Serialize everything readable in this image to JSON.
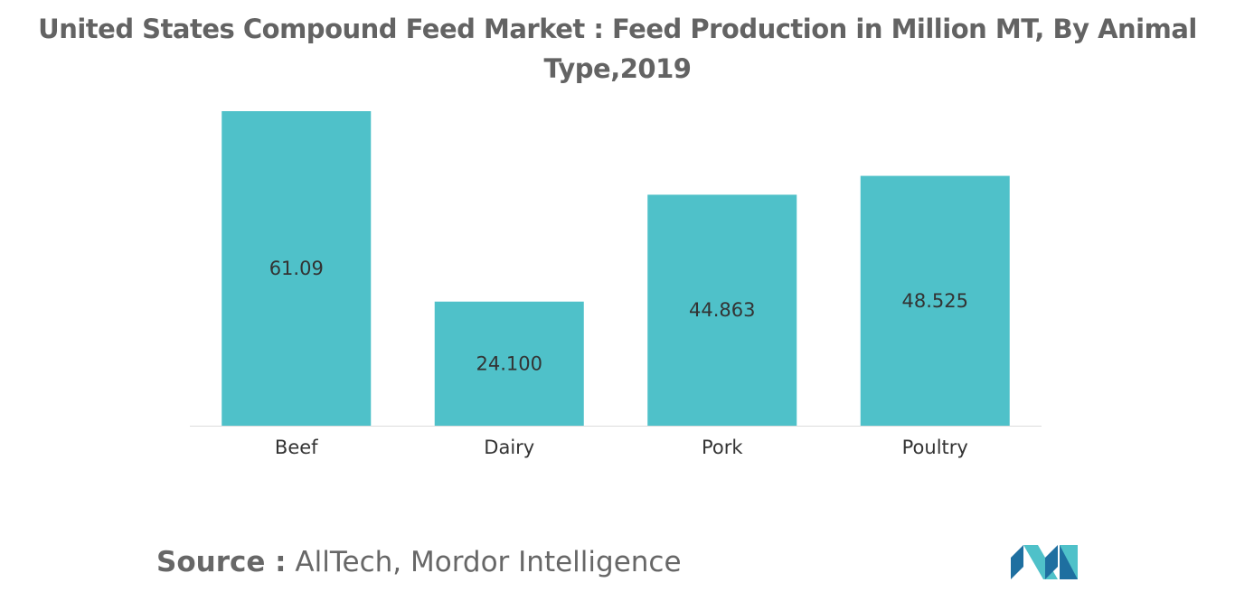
{
  "chart_data": {
    "type": "bar",
    "title": "United States Compound Feed Market : Feed Production in Million MT, By Animal Type,2019",
    "categories": [
      "Beef",
      "Dairy",
      "Pork",
      "Poultry"
    ],
    "values": [
      61.09,
      24.1,
      44.863,
      48.525
    ],
    "value_labels": [
      "61.09",
      "24.100",
      "44.863",
      "48.525"
    ],
    "xlabel": "",
    "ylabel": "",
    "ylim": [
      0,
      61.09
    ],
    "grid": false,
    "legend": "none"
  },
  "colors": {
    "bar": "#4fc1c9",
    "title_text": "#636363",
    "label_text": "#333333",
    "axis": "#dddddd",
    "logo_dark": "#1e6fa0",
    "logo_light": "#4fc1c9"
  },
  "source": {
    "label": "Source :",
    "text": " AllTech, Mordor Intelligence"
  },
  "logo": {
    "icon": "mordor-intelligence-logo-icon"
  }
}
